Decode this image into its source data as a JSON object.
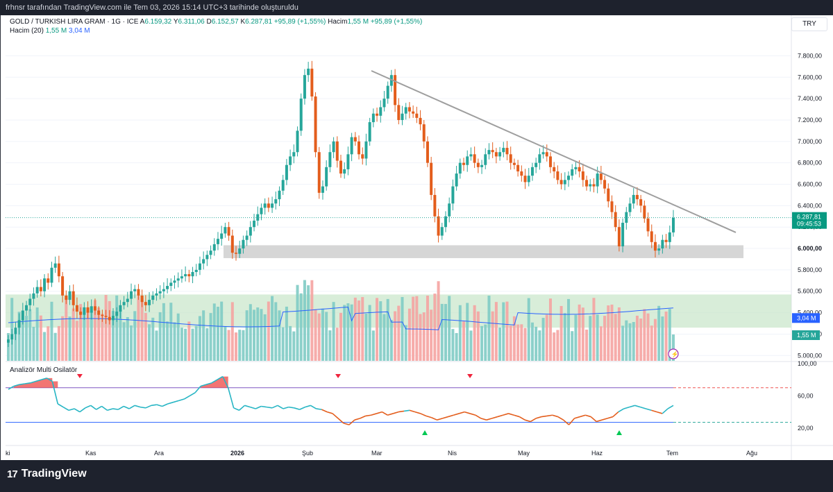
{
  "header": {
    "attribution": "frhnsr tarafından TradingView.com ile Tem 03, 2026 15:14 UTC+3 tarihinde oluşturuldu"
  },
  "legend": {
    "symbol": "GOLD / TURKISH LIRA GRAM · 1G · ICE",
    "open_label": "A",
    "open": "6.159,32",
    "high_label": "Y",
    "high": "6.311,06",
    "low_label": "D",
    "low": "6.152,57",
    "close_label": "K",
    "close": "6.287,81",
    "change": "+95,89 (+1,55%)",
    "volume_label": "Hacim",
    "volume": "1,55 M",
    "volume_change": "+95,89 (+1,55%)",
    "volume_ma_label": "Hacim (20)",
    "volume_ma_1": "1,55 M",
    "volume_ma_2": "3,04 M"
  },
  "currency": "TRY",
  "oscillator": {
    "label": "Analizör Multi Osilatör"
  },
  "price_tag": {
    "price": "6.287,81",
    "time": "09:45:53"
  },
  "volume_tags": {
    "ma": "3,04 M",
    "vol": "1,55 M"
  },
  "footer": {
    "brand": "TradingView"
  },
  "colors": {
    "up": "#26a69a",
    "down": "#e35d1c",
    "trendline": "#9e9e9e",
    "support_zone": "#cfcfcf",
    "volume_zone": "#c8e6c9",
    "ma_line": "#2962ff",
    "osc_fill": "#ef5350"
  },
  "chart_data": {
    "type": "candlestick",
    "y_ticks": [
      "7.800,00",
      "7.600,00",
      "7.400,00",
      "7.200,00",
      "7.000,00",
      "6.800,00",
      "6.600,00",
      "6.400,00",
      "6.200,00",
      "6.000,00",
      "5.800,00",
      "5.600,00",
      "5.400,00",
      "5.200,00",
      "5.000,00"
    ],
    "y_range": [
      4950,
      7900
    ],
    "x_ticks": [
      "ki",
      "Kas",
      "Ara",
      "2026",
      "Şub",
      "Mar",
      "Nis",
      "May",
      "Haz",
      "Tem",
      "Ağu"
    ],
    "osc_ticks": [
      "100,00",
      "60,00",
      "20,00"
    ],
    "osc_range": [
      0,
      100
    ],
    "trendline": {
      "start": {
        "date": "Mar",
        "price": 7650
      },
      "end": {
        "date": "Tem",
        "price": 6180
      }
    },
    "support_zone": {
      "low": 5910,
      "high": 6030
    },
    "candles_close_path": [
      5150,
      5200,
      5260,
      5330,
      5420,
      5470,
      5530,
      5580,
      5640,
      5600,
      5720,
      5680,
      5820,
      5860,
      5740,
      5560,
      5520,
      5600,
      5470,
      5410,
      5380,
      5450,
      5400,
      5460,
      5420,
      5380,
      5370,
      5360,
      5330,
      5370,
      5410,
      5470,
      5500,
      5530,
      5600,
      5620,
      5560,
      5500,
      5470,
      5520,
      5560,
      5580,
      5600,
      5620,
      5650,
      5680,
      5700,
      5720,
      5740,
      5760,
      5740,
      5780,
      5800,
      5860,
      5900,
      5940,
      5980,
      6040,
      6090,
      6140,
      6200,
      6120,
      5960,
      5950,
      6000,
      6080,
      6120,
      6200,
      6260,
      6320,
      6380,
      6420,
      6380,
      6420,
      6460,
      6540,
      6640,
      6780,
      6860,
      6900,
      7100,
      7400,
      7620,
      7680,
      7420,
      6900,
      6520,
      6580,
      6760,
      6900,
      7000,
      6820,
      6700,
      6740,
      6880,
      7040,
      7000,
      6880,
      6840,
      7000,
      7180,
      7260,
      7240,
      7320,
      7400,
      7520,
      7620,
      7340,
      7200,
      7260,
      7320,
      7280,
      7260,
      7220,
      7160,
      7000,
      6800,
      6500,
      6300,
      6120,
      6200,
      6300,
      6420,
      6580,
      6700,
      6800,
      6780,
      6860,
      6880,
      6800,
      6760,
      6780,
      6880,
      6920,
      6900,
      6860,
      6900,
      6940,
      6880,
      6800,
      6780,
      6720,
      6680,
      6620,
      6680,
      6760,
      6800,
      6880,
      6900,
      6860,
      6760,
      6720,
      6640,
      6600,
      6640,
      6680,
      6740,
      6760,
      6720,
      6640,
      6580,
      6600,
      6580,
      6700,
      6640,
      6560,
      6440,
      6340,
      6200,
      6020,
      6240,
      6340,
      6420,
      6500,
      6460,
      6400,
      6280,
      6160,
      6060,
      5980,
      6000,
      6080,
      6060,
      6150,
      6287
    ],
    "oscillator_path": [
      68,
      72,
      74,
      75,
      76,
      78,
      80,
      82,
      78,
      50,
      46,
      42,
      44,
      40,
      45,
      48,
      43,
      47,
      42,
      44,
      43,
      47,
      44,
      48,
      46,
      45,
      48,
      49,
      47,
      50,
      52,
      54,
      56,
      60,
      64,
      72,
      74,
      76,
      80,
      84,
      70,
      45,
      42,
      48,
      46,
      44,
      47,
      46,
      45,
      48,
      44,
      46,
      45,
      43,
      46,
      48,
      44,
      43,
      40,
      38,
      32,
      26,
      24,
      30,
      32,
      35,
      36,
      38,
      40,
      36,
      38,
      40,
      41,
      42,
      40,
      38,
      35,
      33,
      30,
      32,
      34,
      36,
      38,
      40,
      38,
      36,
      32,
      30,
      32,
      34,
      36,
      38,
      36,
      34,
      30,
      28,
      32,
      34,
      35,
      36,
      34,
      30,
      24,
      32,
      34,
      36,
      34,
      28,
      30,
      32,
      34,
      40,
      44,
      46,
      48,
      46,
      44,
      42,
      40,
      38,
      44,
      48
    ],
    "osc_levels": {
      "upper": 70,
      "lower": 27
    }
  }
}
